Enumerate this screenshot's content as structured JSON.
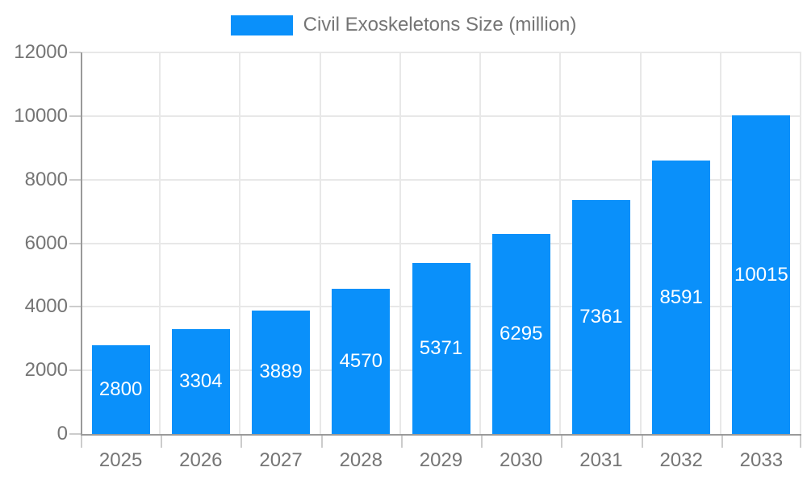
{
  "chart_data": {
    "type": "bar",
    "title": "Civil Exoskeletons Size (million)",
    "categories": [
      "2025",
      "2026",
      "2027",
      "2028",
      "2029",
      "2030",
      "2031",
      "2032",
      "2033"
    ],
    "values": [
      2800,
      3304,
      3889,
      4570,
      5371,
      6295,
      7361,
      8591,
      10015
    ],
    "xlabel": "",
    "ylabel": "",
    "ylim": [
      0,
      12000
    ],
    "yticks": [
      0,
      2000,
      4000,
      6000,
      8000,
      10000,
      12000
    ],
    "grid": true,
    "legend_position": "top",
    "value_label_position": "inside-center"
  },
  "legend": {
    "label": "Civil Exoskeletons Size (million)"
  },
  "colors": {
    "bar": "#0a90fa",
    "axis_line": "#9a9a9a",
    "grid_line": "#e8e8e8",
    "tick_line": "#cccccc",
    "axis_text": "#757575",
    "value_label_text": "#ffffff",
    "background": "#ffffff"
  }
}
